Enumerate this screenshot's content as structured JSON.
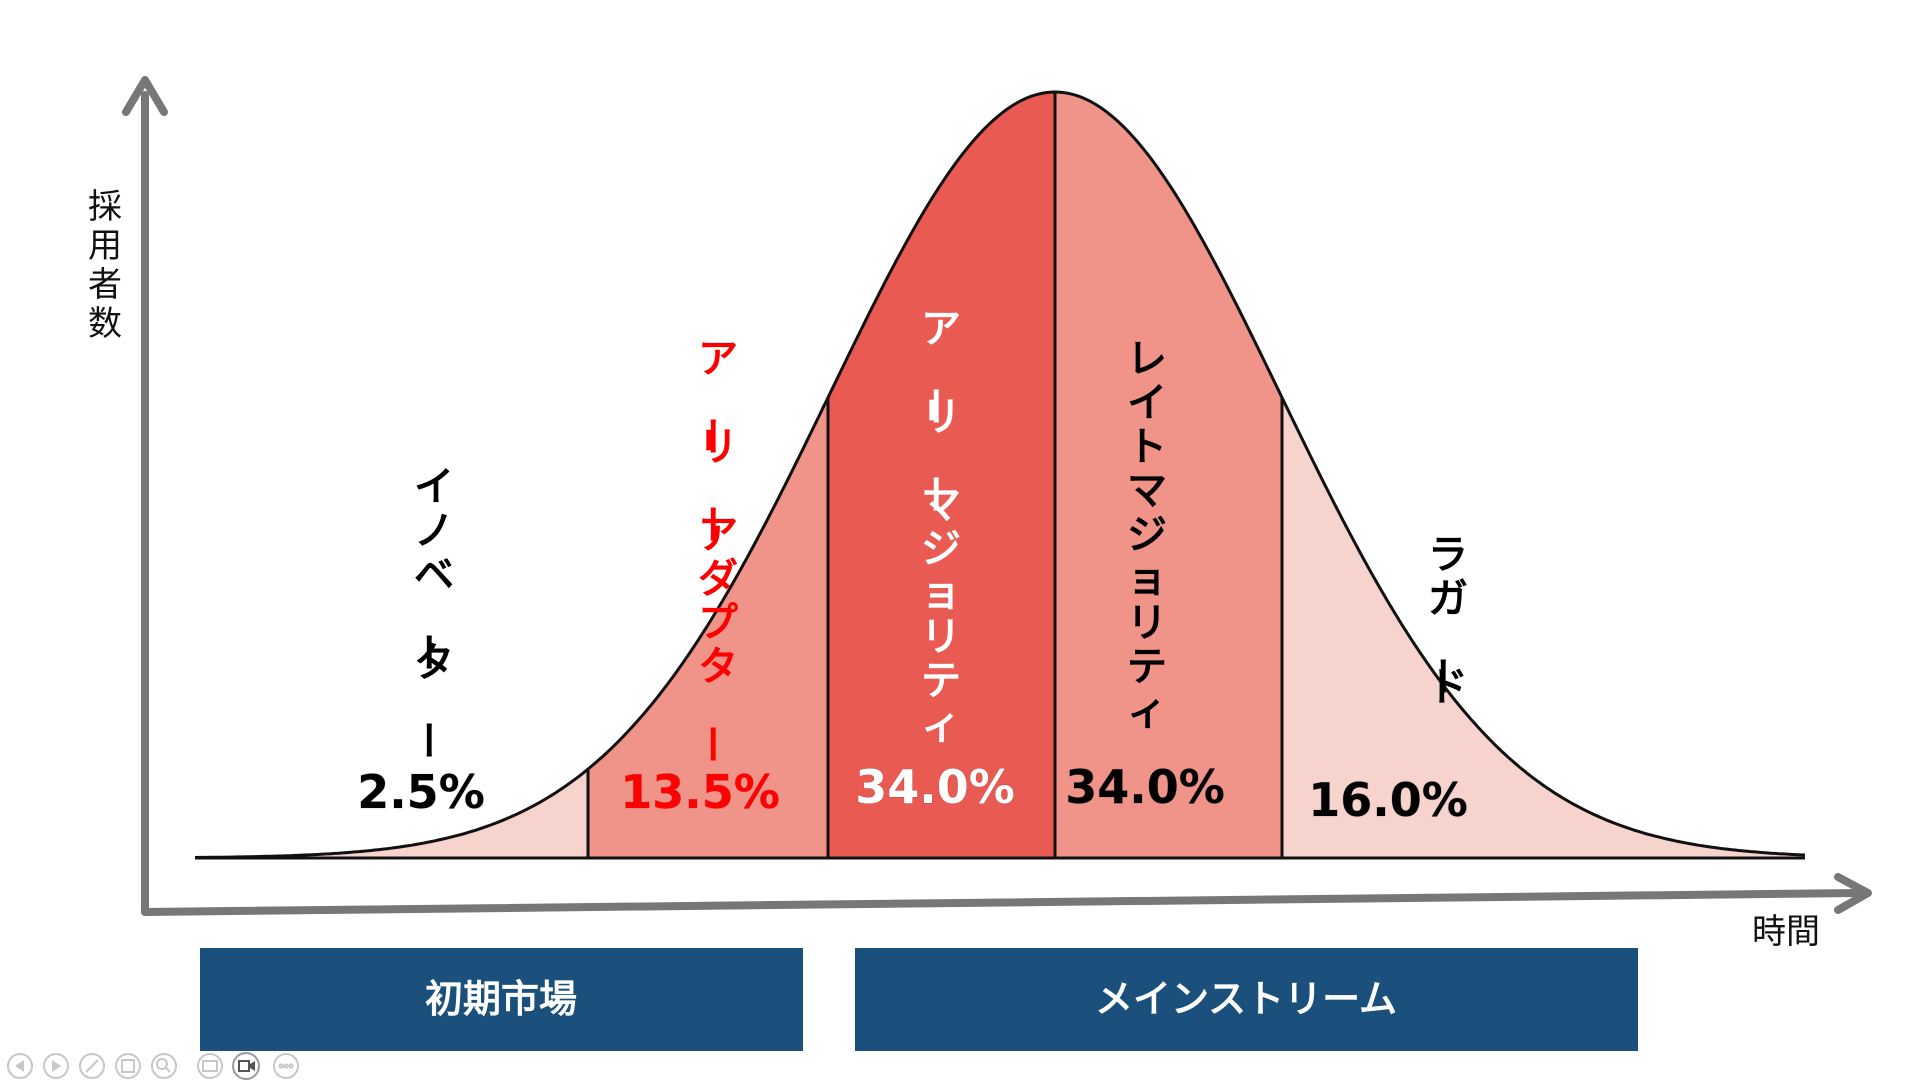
{
  "axes": {
    "y_label": "採用者数",
    "x_label": "時間"
  },
  "segments": [
    {
      "label": "イノベーター",
      "percent": "2.5%",
      "label_color": "#000000",
      "percent_color": "#000000",
      "fill": "#f7d3cd"
    },
    {
      "label": "アーリーアダプター",
      "percent": "13.5%",
      "label_color": "#ff0000",
      "percent_color": "#ff0000",
      "fill": "#f0948a"
    },
    {
      "label": "アーリーマジョリティ",
      "percent": "34.0%",
      "label_color": "#ffffff",
      "percent_color": "#ffffff",
      "fill": "#e95a52"
    },
    {
      "label": "レイトマジョリティ",
      "percent": "34.0%",
      "label_color": "#000000",
      "percent_color": "#000000",
      "fill": "#f0948a"
    },
    {
      "label": "ラガード",
      "percent": "16.0%",
      "label_color": "#000000",
      "percent_color": "#000000",
      "fill": "#f7d3cd"
    }
  ],
  "markets": {
    "early": "初期市場",
    "mainstream": "メインストリーム"
  },
  "colors": {
    "market_box": "#1b507c",
    "axis": "#777777",
    "curve_stroke": "#111111"
  },
  "controls": {
    "icons": [
      "prev-slide-icon",
      "next-slide-icon",
      "pen-icon",
      "slides-grid-icon",
      "zoom-icon",
      "subtitles-icon",
      "camera-icon",
      "more-icon"
    ]
  }
}
